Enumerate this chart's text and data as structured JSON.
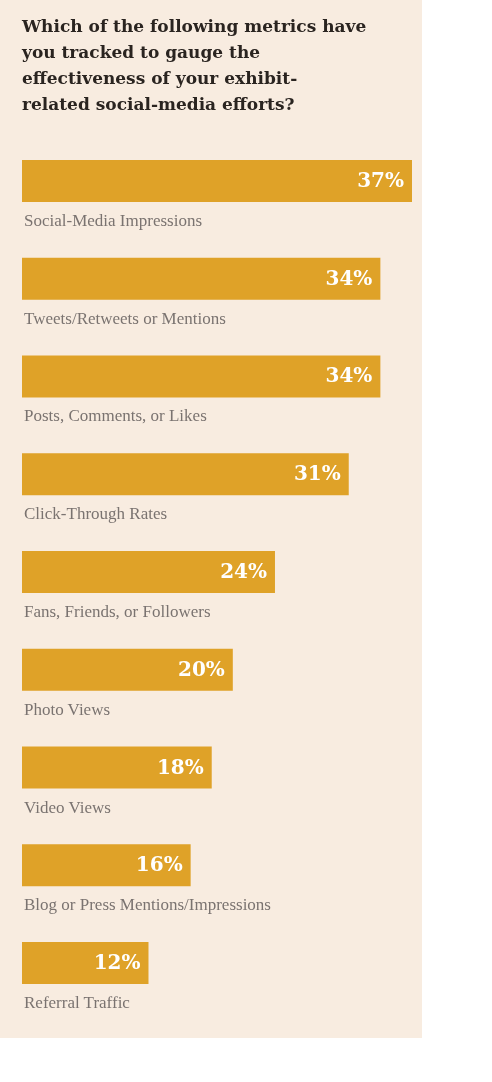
{
  "chart_data": {
    "type": "bar",
    "orientation": "horizontal",
    "title": "Which of the following metrics have you tracked to gauge the effectiveness of your exhibit-related social-media efforts?",
    "categories": [
      "Social-Media Impressions",
      "Tweets/Retweets or Mentions",
      "Posts, Comments, or Likes",
      "Click-Through Rates",
      "Fans, Friends, or Followers",
      "Photo Views",
      "Video Views",
      "Blog or Press Mentions/Impressions",
      "Referral Traffic"
    ],
    "values": [
      37,
      34,
      34,
      31,
      24,
      20,
      18,
      16,
      12
    ],
    "value_labels": [
      "37%",
      "34%",
      "34%",
      "31%",
      "24%",
      "20%",
      "18%",
      "16%",
      "12%"
    ],
    "color": "#dfa228",
    "grid": false
  }
}
